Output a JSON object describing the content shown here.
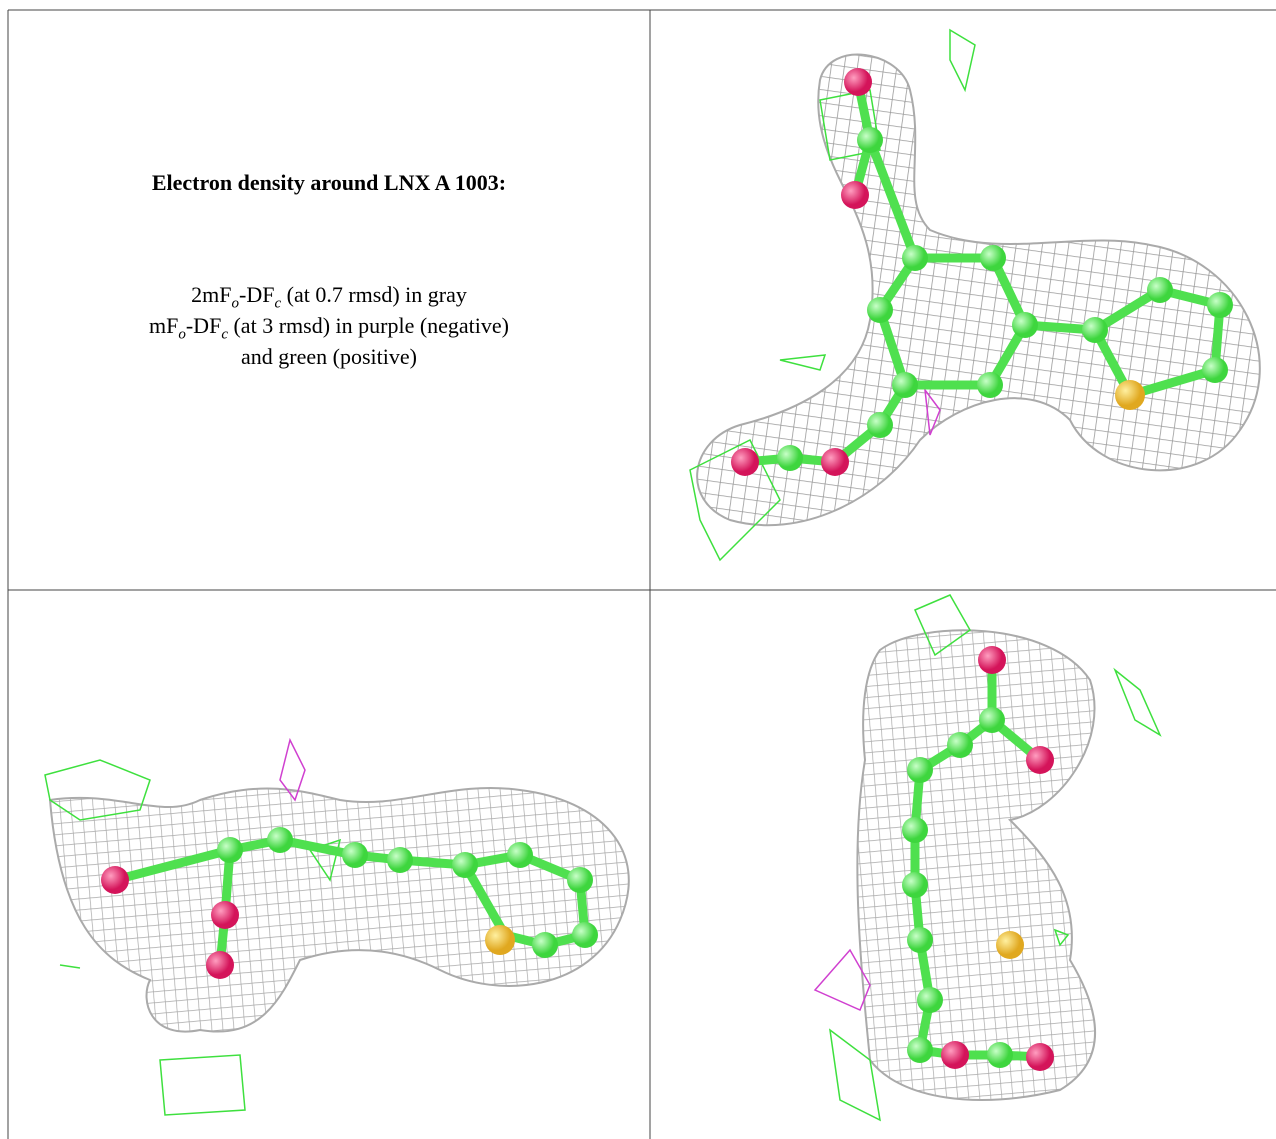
{
  "legend": {
    "title": "Electron density around LNX A 1003:",
    "lines": [
      [
        "2mF",
        "o",
        "-DF",
        "c",
        " (at 0.7 rmsd) in gray"
      ],
      [
        "mF",
        "o",
        "-DF",
        "c",
        " (at 3 rmsd) in purple (negative)"
      ],
      [
        "and green (positive)"
      ]
    ]
  }
}
